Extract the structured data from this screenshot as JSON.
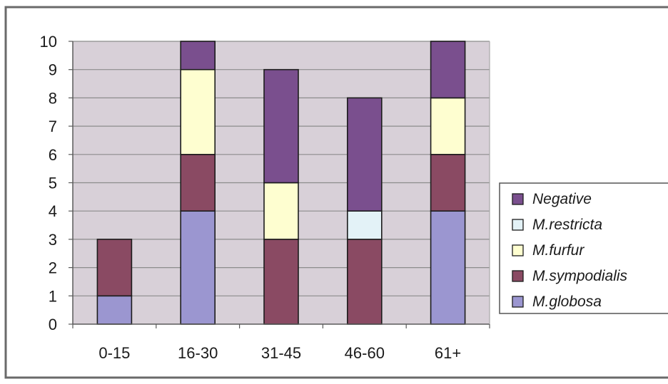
{
  "chart_data": {
    "type": "bar",
    "stacked": true,
    "categories": [
      "0-15",
      "16-30",
      "31-45",
      "46-60",
      "61+"
    ],
    "ylim": [
      0,
      10
    ],
    "yticks": [
      0,
      1,
      2,
      3,
      4,
      5,
      6,
      7,
      8,
      9,
      10
    ],
    "grid": true,
    "legend_position": "right",
    "series": [
      {
        "name": "M.globosa",
        "color": "#9b96d0",
        "values": [
          1,
          4,
          0,
          0,
          4
        ]
      },
      {
        "name": "M.sympodialis",
        "color": "#8a4a63",
        "values": [
          2,
          2,
          3,
          3,
          2
        ]
      },
      {
        "name": "M.furfur",
        "color": "#fefed0",
        "values": [
          0,
          3,
          2,
          0,
          2
        ]
      },
      {
        "name": "M.restricta",
        "color": "#e3f2f7",
        "values": [
          0,
          0,
          0,
          1,
          0
        ]
      },
      {
        "name": "Negative",
        "color": "#7a4f8e",
        "values": [
          0,
          1,
          4,
          4,
          2
        ]
      }
    ],
    "legend_order": [
      "Negative",
      "M.restricta",
      "M.furfur",
      "M.sympodialis",
      "M.globosa"
    ],
    "colors": {
      "plot_background": "#d8d0d8",
      "gridline": "#8c8c8c",
      "frame": "#5a5a5a"
    }
  }
}
